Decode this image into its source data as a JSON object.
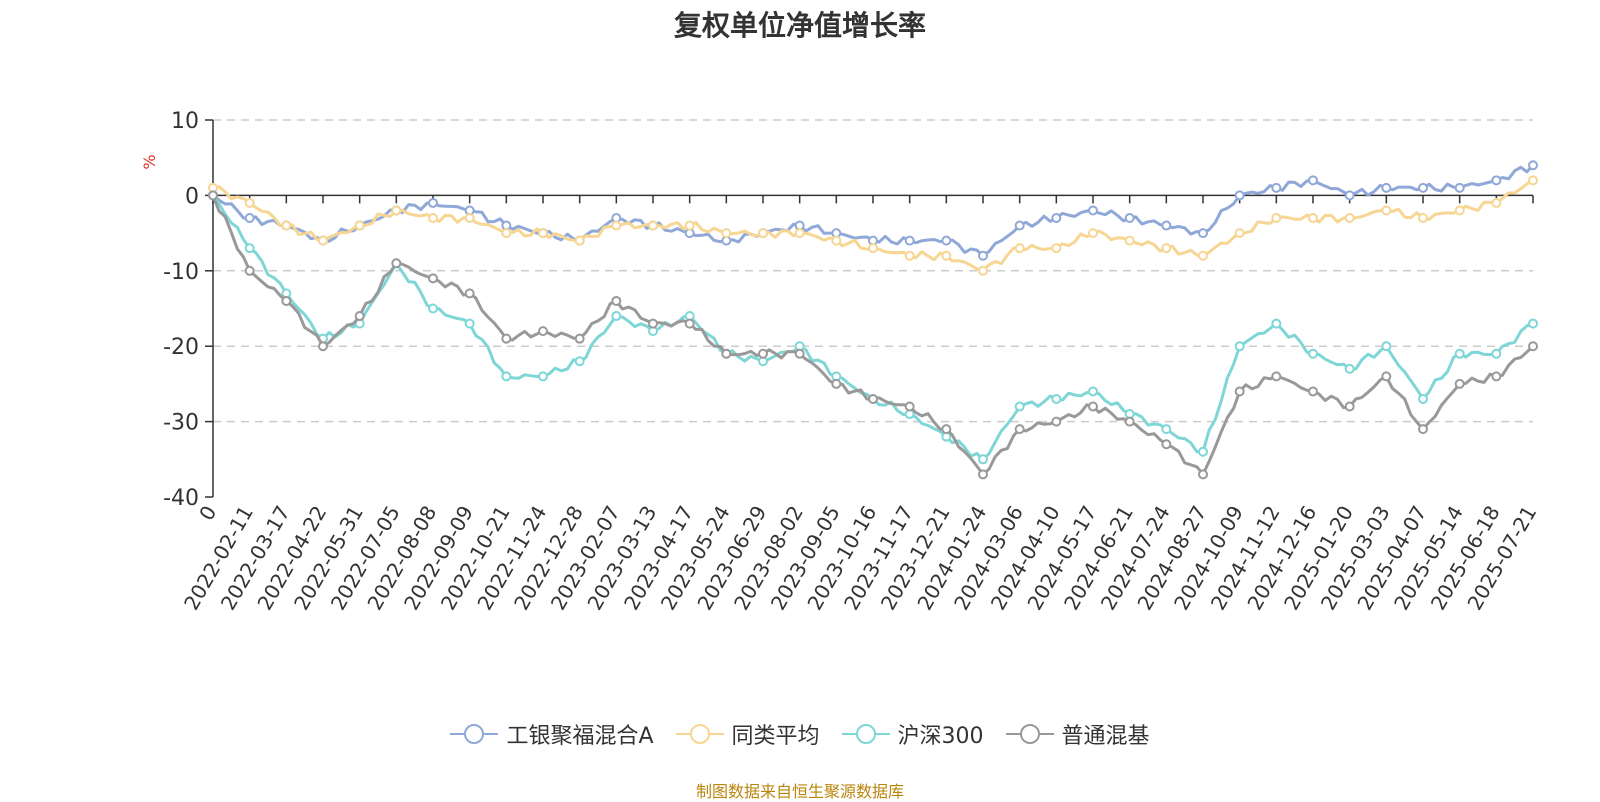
{
  "chart_data": {
    "type": "line",
    "title": "复权单位净值增长率",
    "ylabel": "%",
    "ylim": [
      -40,
      10
    ],
    "yticks": [
      10,
      0,
      -10,
      -20,
      -30,
      -40
    ],
    "grid": true,
    "legend_position": "bottom",
    "x_tick_labels": [
      "0",
      "2022-02-11",
      "2022-03-17",
      "2022-04-22",
      "2022-05-31",
      "2022-07-05",
      "2022-08-08",
      "2022-09-09",
      "2022-10-21",
      "2022-11-24",
      "2022-12-28",
      "2023-02-07",
      "2023-03-13",
      "2023-04-17",
      "2023-05-24",
      "2023-06-29",
      "2023-08-02",
      "2023-09-05",
      "2023-10-16",
      "2023-11-17",
      "2023-12-21",
      "2024-01-24",
      "2024-03-06",
      "2024-04-10",
      "2024-05-17",
      "2024-06-21",
      "2024-07-24",
      "2024-08-27",
      "2024-10-09",
      "2024-11-12",
      "2024-12-16",
      "2025-01-20",
      "2025-03-03",
      "2025-04-07",
      "2025-05-14",
      "2025-06-18",
      "2025-07-21"
    ],
    "series": [
      {
        "name": "工银聚福混合A",
        "color": "#8fa8d8",
        "values": [
          0,
          -3,
          -4,
          -6,
          -4,
          -2,
          -1,
          -2,
          -4,
          -5,
          -6,
          -3,
          -4,
          -5,
          -6,
          -5,
          -4,
          -5,
          -6,
          -6,
          -6,
          -8,
          -4,
          -3,
          -2,
          -3,
          -4,
          -5,
          0,
          1,
          2,
          0,
          1,
          1,
          1,
          2,
          4
        ]
      },
      {
        "name": "同类平均",
        "color": "#f7d592",
        "values": [
          1,
          -1,
          -4,
          -6,
          -4,
          -2,
          -3,
          -3,
          -5,
          -5,
          -6,
          -4,
          -4,
          -4,
          -5,
          -5,
          -5,
          -6,
          -7,
          -8,
          -8,
          -10,
          -7,
          -7,
          -5,
          -6,
          -7,
          -8,
          -5,
          -3,
          -3,
          -3,
          -2,
          -3,
          -2,
          -1,
          2
        ]
      },
      {
        "name": "沪深300",
        "color": "#7ed6d6",
        "values": [
          0,
          -7,
          -13,
          -19,
          -17,
          -9,
          -15,
          -17,
          -24,
          -24,
          -22,
          -16,
          -18,
          -16,
          -21,
          -22,
          -20,
          -24,
          -27,
          -29,
          -32,
          -35,
          -28,
          -27,
          -26,
          -29,
          -31,
          -34,
          -20,
          -17,
          -21,
          -23,
          -20,
          -27,
          -21,
          -21,
          -17
        ]
      },
      {
        "name": "普通混基",
        "color": "#999999",
        "values": [
          0,
          -10,
          -14,
          -20,
          -16,
          -9,
          -11,
          -13,
          -19,
          -18,
          -19,
          -14,
          -17,
          -17,
          -21,
          -21,
          -21,
          -25,
          -27,
          -28,
          -31,
          -37,
          -31,
          -30,
          -28,
          -30,
          -33,
          -37,
          -26,
          -24,
          -26,
          -28,
          -24,
          -31,
          -25,
          -24,
          -20
        ]
      }
    ]
  },
  "source_note": "制图数据来自恒生聚源数据库"
}
